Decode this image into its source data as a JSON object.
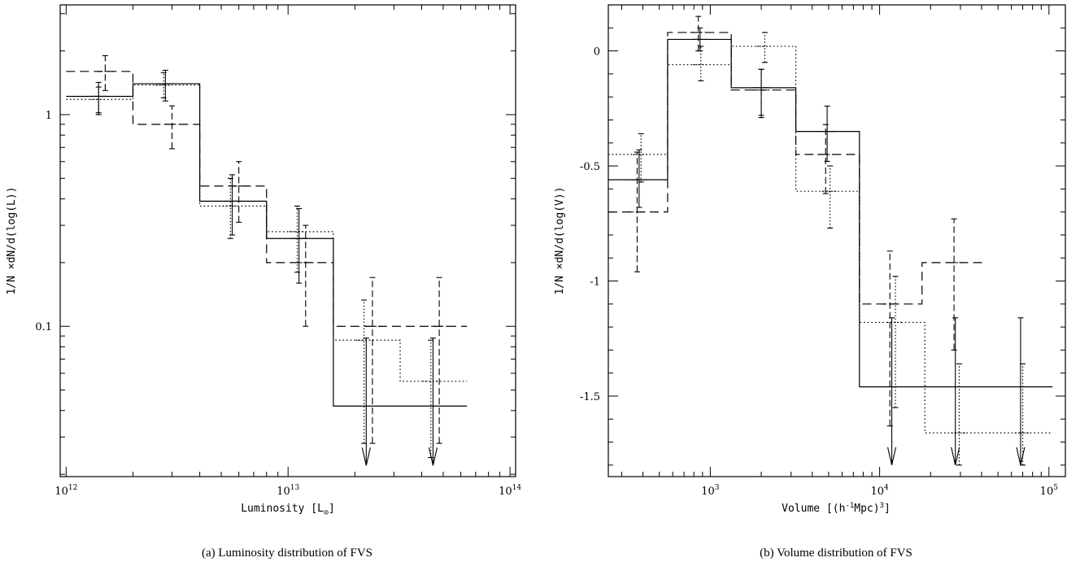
{
  "chart_data": [
    {
      "type": "step",
      "caption": "(a) Luminosity distribution of FVS",
      "xlabel_main": "Luminosity [L",
      "xlabel_sub": "⊙",
      "xlabel_end": "]",
      "ylabel": "1/N ×dN/d(log(L))",
      "xscale": "log",
      "yscale": "log",
      "xlim": [
        940000000000.0,
        106000000000000.0
      ],
      "ylim": [
        0.0195,
        3.3
      ],
      "xticks": [
        {
          "base": "10",
          "exp": "12",
          "value": 1000000000000.0
        },
        {
          "base": "10",
          "exp": "13",
          "value": 10000000000000.0
        },
        {
          "base": "10",
          "exp": "14",
          "value": 100000000000000.0
        }
      ],
      "yticks": [
        {
          "label": "0.1",
          "value": 0.1
        },
        {
          "label": "1",
          "value": 1
        }
      ],
      "series": [
        {
          "style": "solid",
          "edges": [
            1000000000000.0,
            2000000000000.0,
            4000000000000.0,
            8000000000000.0,
            16000000000000.0,
            64000000000000.0
          ],
          "values": [
            1.22,
            1.4,
            0.39,
            0.26,
            0.042
          ],
          "errorbars": [
            {
              "x": 1400000000000.0,
              "y": 1.22,
              "lo": 1.0,
              "hi": 1.42
            },
            {
              "x": 2800000000000.0,
              "y": 1.4,
              "lo": 1.16,
              "hi": 1.62
            },
            {
              "x": 5600000000000.0,
              "y": 0.39,
              "lo": 0.27,
              "hi": 0.52
            },
            {
              "x": 11200000000000.0,
              "y": 0.26,
              "lo": 0.16,
              "hi": 0.36
            }
          ],
          "upper_limits": [
            {
              "x": 22500000000000.0,
              "from": 0.088,
              "to": 0.022
            },
            {
              "x": 45000000000000.0,
              "from": 0.088,
              "to": 0.022
            }
          ]
        },
        {
          "style": "dashed",
          "edges": [
            1000000000000.0,
            2000000000000.0,
            4000000000000.0,
            8000000000000.0,
            16000000000000.0,
            64000000000000.0
          ],
          "values": [
            1.6,
            0.9,
            0.46,
            0.2,
            0.1
          ],
          "errorbars": [
            {
              "x": 1500000000000.0,
              "y": 1.6,
              "lo": 1.3,
              "hi": 1.9
            },
            {
              "x": 3000000000000.0,
              "y": 0.9,
              "lo": 0.69,
              "hi": 1.1
            },
            {
              "x": 6000000000000.0,
              "y": 0.46,
              "lo": 0.31,
              "hi": 0.6
            },
            {
              "x": 12000000000000.0,
              "y": 0.2,
              "lo": 0.1,
              "hi": 0.3
            },
            {
              "x": 24000000000000.0,
              "y": 0.1,
              "lo": 0.028,
              "hi": 0.17
            },
            {
              "x": 48000000000000.0,
              "y": 0.1,
              "lo": 0.028,
              "hi": 0.17
            }
          ]
        },
        {
          "style": "dotted",
          "edges": [
            1000000000000.0,
            2000000000000.0,
            4000000000000.0,
            8000000000000.0,
            16000000000000.0,
            32000000000000.0,
            64000000000000.0
          ],
          "values": [
            1.18,
            1.38,
            0.37,
            0.28,
            0.086,
            0.055
          ],
          "errorbars": [
            {
              "x": 1400000000000.0,
              "y": 1.18,
              "lo": 1.02,
              "hi": 1.35
            },
            {
              "x": 2750000000000.0,
              "y": 1.38,
              "lo": 1.2,
              "hi": 1.58
            },
            {
              "x": 5500000000000.0,
              "y": 0.37,
              "lo": 0.26,
              "hi": 0.5
            },
            {
              "x": 11000000000000.0,
              "y": 0.28,
              "lo": 0.18,
              "hi": 0.37
            },
            {
              "x": 22000000000000.0,
              "y": 0.086,
              "lo": 0.028,
              "hi": 0.133
            },
            {
              "x": 44000000000000.0,
              "y": 0.055,
              "lo": 0.024,
              "hi": 0.086
            }
          ]
        }
      ]
    },
    {
      "type": "step",
      "caption": "(b) Volume distribution of FVS",
      "xlabel_main": "Volume [(h",
      "xlabel_sup1": "-1",
      "xlabel_mid": "Mpc)",
      "xlabel_sup2": "3",
      "xlabel_end": "]",
      "ylabel": "1/N ×dN/d(log(V))",
      "xscale": "log",
      "yscale": "linear",
      "xlim": [
        250,
        125000
      ],
      "ylim": [
        -1.85,
        0.2
      ],
      "xticks": [
        {
          "base": "10",
          "exp": "3",
          "value": 1000
        },
        {
          "base": "10",
          "exp": "4",
          "value": 10000
        },
        {
          "base": "10",
          "exp": "5",
          "value": 100000
        }
      ],
      "yticks": [
        {
          "label": "0",
          "value": 0
        },
        {
          "label": "-0.5",
          "value": -0.5
        },
        {
          "label": "-1",
          "value": -1
        },
        {
          "label": "-1.5",
          "value": -1.5
        }
      ],
      "series": [
        {
          "style": "solid",
          "edges": [
            250,
            560,
            1330,
            3200,
            7600,
            105000
          ],
          "values": [
            -0.56,
            0.05,
            -0.16,
            -0.35,
            -1.46
          ],
          "errorbars": [
            {
              "x": 380,
              "y": -0.56,
              "lo": -0.68,
              "hi": -0.43
            },
            {
              "x": 870,
              "y": 0.05,
              "lo": 0.0,
              "hi": 0.1
            },
            {
              "x": 2000,
              "y": -0.16,
              "lo": -0.29,
              "hi": -0.08
            },
            {
              "x": 4900,
              "y": -0.35,
              "lo": -0.48,
              "hi": -0.24
            }
          ],
          "upper_limits": [
            {
              "x": 11800,
              "from": -1.16,
              "to": -1.8
            },
            {
              "x": 28000,
              "from": -1.16,
              "to": -1.8
            },
            {
              "x": 68000,
              "from": -1.16,
              "to": -1.8
            }
          ]
        },
        {
          "style": "dashed",
          "edges": [
            250,
            560,
            1330,
            3200,
            7600,
            17800,
            42000
          ],
          "values": [
            -0.7,
            0.08,
            -0.17,
            -0.45,
            -1.1,
            -0.92
          ],
          "errorbars": [
            {
              "x": 370,
              "y": -0.7,
              "lo": -0.96,
              "hi": -0.44
            },
            {
              "x": 850,
              "y": 0.08,
              "lo": 0.0,
              "hi": 0.15
            },
            {
              "x": 2000,
              "y": -0.17,
              "lo": -0.28,
              "hi": -0.08
            },
            {
              "x": 4800,
              "y": -0.45,
              "lo": -0.62,
              "hi": -0.32
            },
            {
              "x": 11500,
              "y": -1.1,
              "lo": -1.63,
              "hi": -0.87
            },
            {
              "x": 27500,
              "y": -0.92,
              "lo": -1.3,
              "hi": -0.73
            }
          ]
        },
        {
          "style": "dotted",
          "edges": [
            250,
            560,
            1330,
            3200,
            7600,
            18500,
            105000
          ],
          "values": [
            -0.45,
            -0.06,
            0.02,
            -0.61,
            -1.18,
            -1.66
          ],
          "errorbars": [
            {
              "x": 390,
              "y": -0.45,
              "lo": -0.57,
              "hi": -0.36
            },
            {
              "x": 880,
              "y": -0.06,
              "lo": -0.13,
              "hi": 0.02
            },
            {
              "x": 2100,
              "y": 0.02,
              "lo": -0.05,
              "hi": 0.08
            },
            {
              "x": 5100,
              "y": -0.61,
              "lo": -0.77,
              "hi": -0.5
            },
            {
              "x": 12400,
              "y": -1.18,
              "lo": -1.55,
              "hi": -0.98
            },
            {
              "x": 29500,
              "y": -1.66,
              "lo": -1.8,
              "hi": -1.36
            },
            {
              "x": 70000,
              "y": -1.66,
              "lo": -1.8,
              "hi": -1.36
            }
          ]
        }
      ]
    }
  ]
}
